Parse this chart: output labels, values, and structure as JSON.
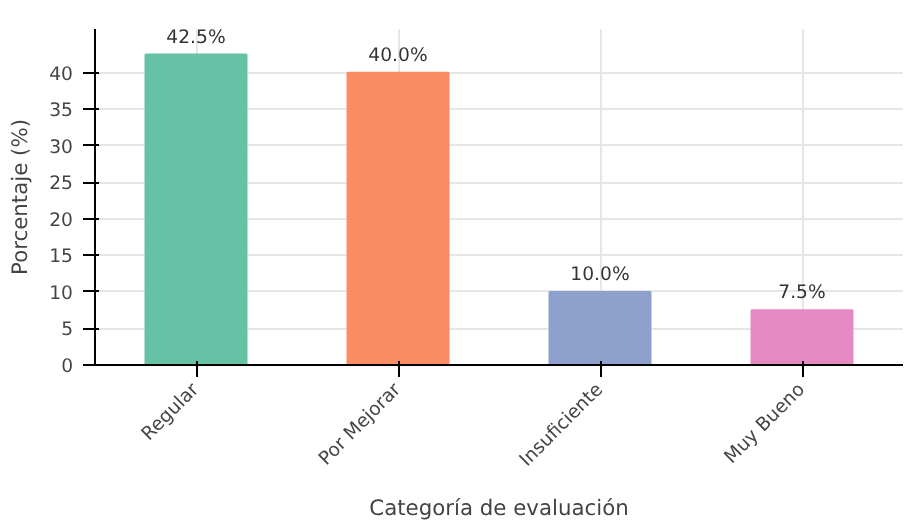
{
  "chart_data": {
    "type": "bar",
    "xlabel": "Categoría de evaluación",
    "ylabel": "Porcentaje (%)",
    "categories": [
      "Regular",
      "Por Mejorar",
      "Insuficiente",
      "Muy Bueno"
    ],
    "values": [
      42.5,
      40.0,
      10.0,
      7.5
    ],
    "colors": [
      "#66c2a5",
      "#fc8d62",
      "#8da0cb",
      "#e78ac3"
    ],
    "value_labels": [
      "42.5%",
      "40.0%",
      "10.0%",
      "7.5%"
    ],
    "ylim": [
      0,
      46
    ],
    "yticks": [
      0,
      5,
      10,
      15,
      20,
      25,
      30,
      35,
      40
    ],
    "grid": true
  }
}
